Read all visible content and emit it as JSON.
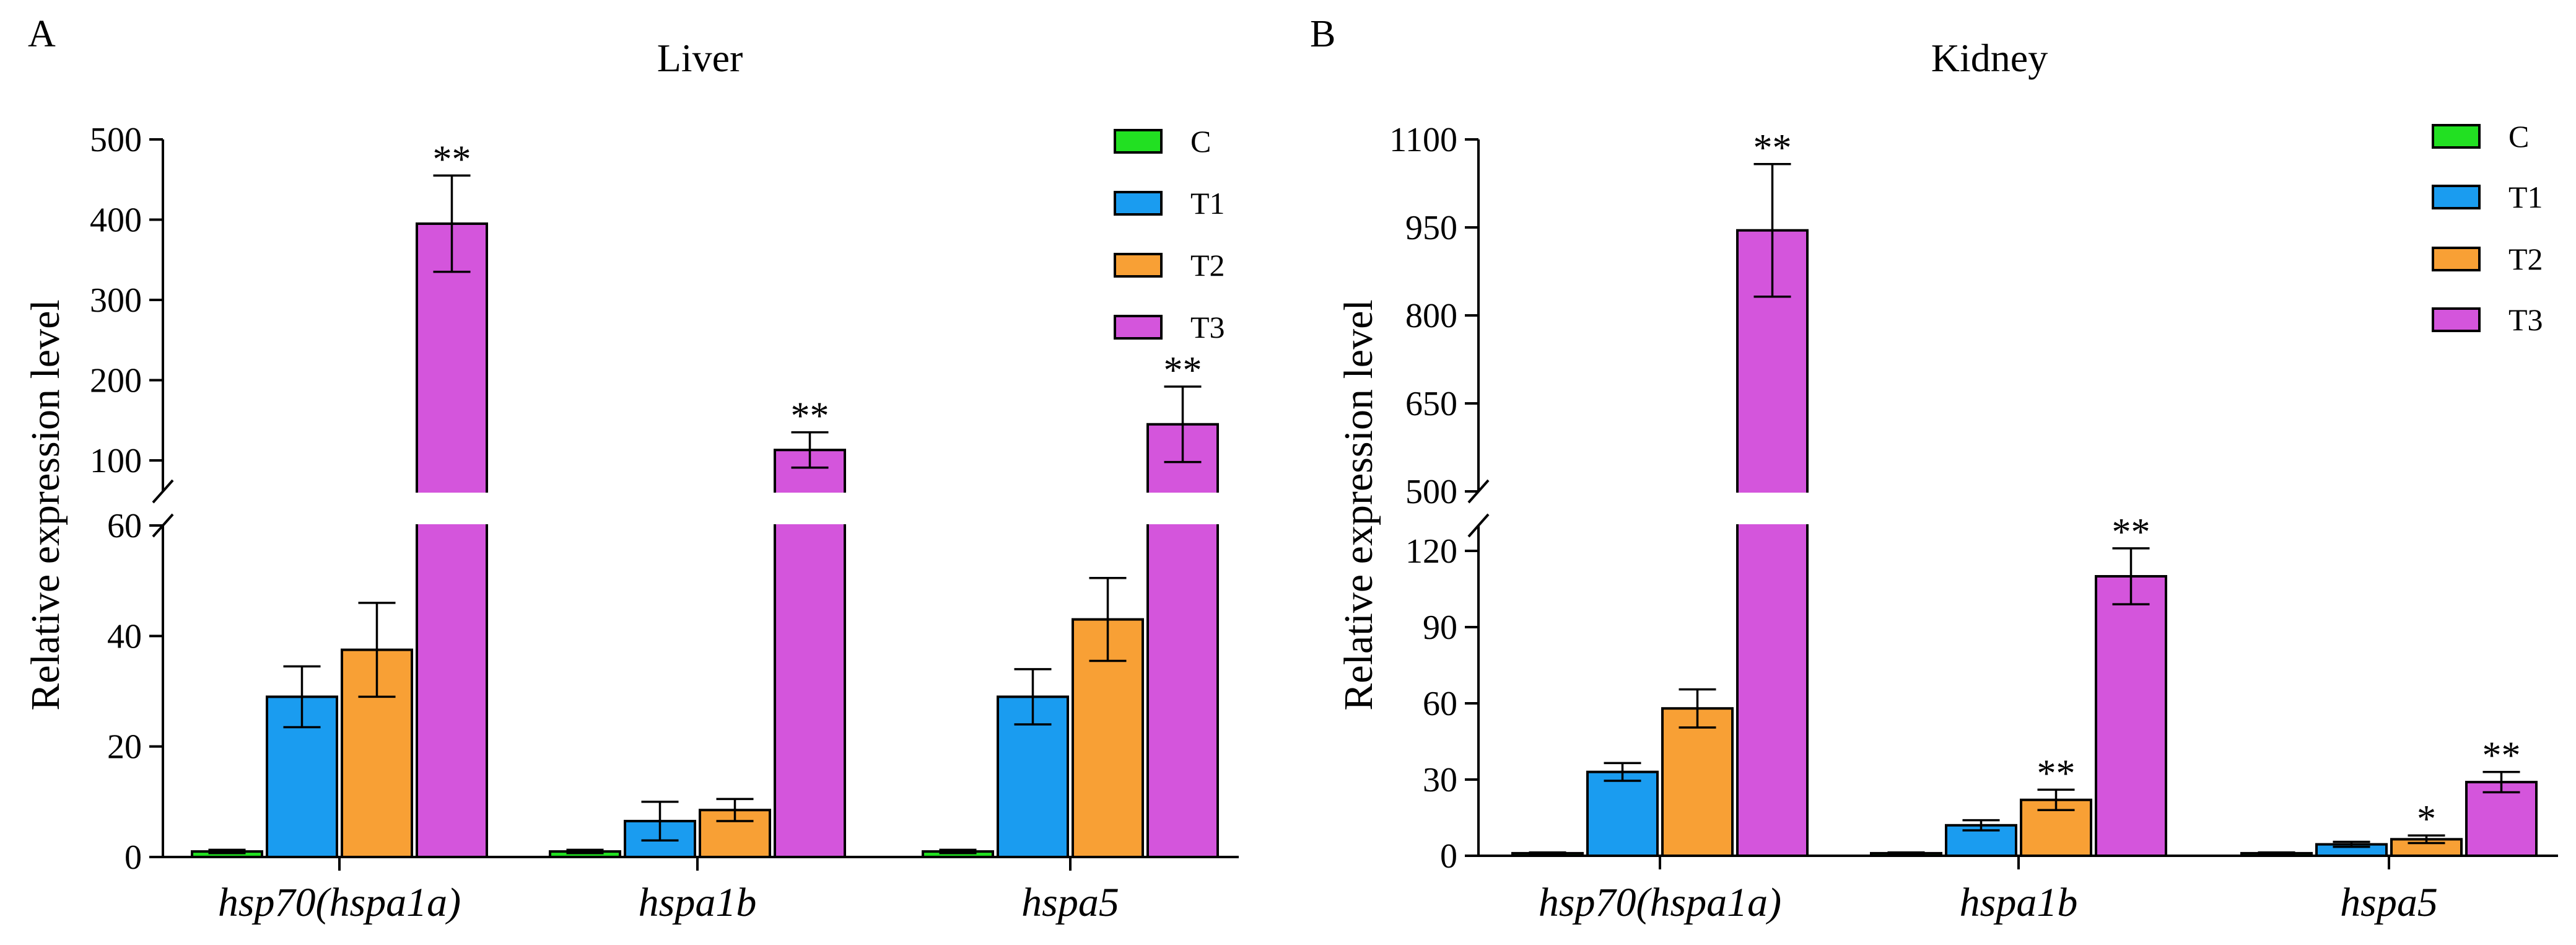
{
  "chart_data": [
    {
      "panel_label": "A",
      "type": "bar",
      "title": "Liver",
      "ylabel": "Relative expression level",
      "xlabel": "",
      "categories": [
        "hsp70(hspa1a)",
        "hspa1b",
        "hspa5"
      ],
      "legend_position": "top-right",
      "grid": false,
      "y_axis_break": {
        "lower_range": [
          0,
          60
        ],
        "upper_range": [
          60,
          500
        ]
      },
      "lower_ticks": [
        0,
        20,
        40,
        60
      ],
      "upper_ticks": [
        100,
        200,
        300,
        400,
        500
      ],
      "series": [
        {
          "name": "C",
          "color": "#22e022",
          "values": [
            1,
            1,
            1
          ],
          "errors": [
            0.3,
            0.3,
            0.3
          ],
          "significance": [
            "",
            "",
            ""
          ]
        },
        {
          "name": "T1",
          "color": "#1a9cf0",
          "values": [
            29,
            6.5,
            29
          ],
          "errors": [
            5.5,
            3.5,
            5
          ],
          "significance": [
            "",
            "",
            ""
          ]
        },
        {
          "name": "T2",
          "color": "#f8a035",
          "values": [
            37.5,
            8.5,
            43
          ],
          "errors": [
            8.5,
            2,
            7.5
          ],
          "significance": [
            "",
            "",
            ""
          ]
        },
        {
          "name": "T3",
          "color": "#d455dc",
          "values": [
            395,
            113,
            145
          ],
          "errors": [
            60,
            22,
            47
          ],
          "significance": [
            "**",
            "**",
            "**"
          ]
        }
      ]
    },
    {
      "panel_label": "B",
      "type": "bar",
      "title": "Kidney",
      "ylabel": "Relative expression level",
      "xlabel": "",
      "categories": [
        "hsp70(hspa1a)",
        "hspa1b",
        "hspa5"
      ],
      "legend_position": "top-right",
      "grid": false,
      "y_axis_break": {
        "lower_range": [
          0,
          130
        ],
        "upper_range": [
          500,
          1100
        ]
      },
      "lower_ticks": [
        0,
        30,
        60,
        90,
        120
      ],
      "upper_ticks": [
        500,
        650,
        800,
        950,
        1100
      ],
      "series": [
        {
          "name": "C",
          "color": "#22e022",
          "values": [
            1,
            1,
            1
          ],
          "errors": [
            0.3,
            0.3,
            0.3
          ],
          "significance": [
            "",
            "",
            ""
          ]
        },
        {
          "name": "T1",
          "color": "#1a9cf0",
          "values": [
            33,
            12,
            4.5
          ],
          "errors": [
            3.5,
            2,
            1
          ],
          "significance": [
            "",
            "",
            ""
          ]
        },
        {
          "name": "T2",
          "color": "#f8a035",
          "values": [
            58,
            22,
            6.5
          ],
          "errors": [
            7.5,
            4,
            1.5
          ],
          "significance": [
            "",
            "**",
            "*"
          ]
        },
        {
          "name": "T3",
          "color": "#d455dc",
          "values": [
            945,
            110,
            29
          ],
          "errors": [
            113,
            11,
            4
          ],
          "significance": [
            "**",
            "**",
            "**"
          ]
        }
      ]
    }
  ]
}
